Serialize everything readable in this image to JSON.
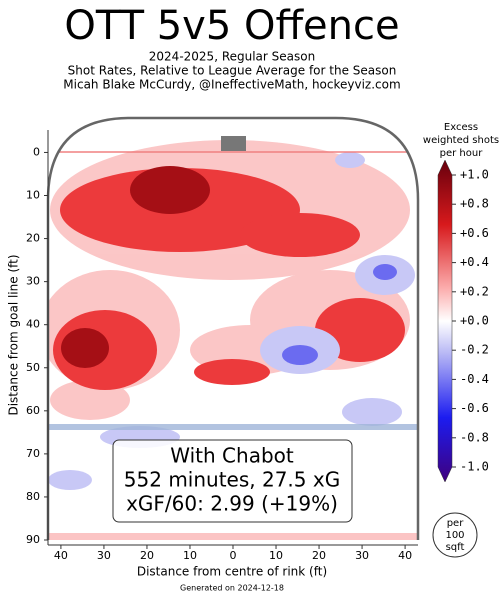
{
  "chart_data": {
    "type": "contour",
    "title": "OTT 5v5 Offence",
    "subtitle": [
      "2024-2025, Regular Season",
      "Shot Rates, Relative to League Average for the Season",
      "Micah Blake McCurdy, @IneffectiveMath, hockeyviz.com"
    ],
    "x_label": "Distance from centre of rink (ft)",
    "y_label": "Distance from goal line (ft)",
    "xlim": [
      43,
      -43
    ],
    "xticks": [
      40,
      30,
      20,
      10,
      0,
      {
        "value": -10,
        "label": "10"
      },
      {
        "value": -20,
        "label": "20"
      },
      {
        "value": -30,
        "label": "30"
      },
      {
        "value": -40,
        "label": "40"
      }
    ],
    "ylim": [
      -8,
      90
    ],
    "yticks": [
      0,
      10,
      20,
      30,
      40,
      50,
      60,
      70,
      80,
      90
    ],
    "colorbar_label": [
      "Excess",
      "weighted shots",
      "per hour"
    ],
    "colorbar_lim": [
      -1.0,
      1.0
    ],
    "colorbar_ticks": [
      {
        "value": 1.0,
        "label": "+1.0"
      },
      {
        "value": 0.8,
        "label": "+0.8"
      },
      {
        "value": 0.6,
        "label": "+0.6"
      },
      {
        "value": 0.4,
        "label": "+0.4"
      },
      {
        "value": 0.2,
        "label": "+0.2"
      },
      {
        "value": 0.0,
        "label": "+0.0"
      },
      {
        "value": -0.2,
        "label": "-0.2"
      },
      {
        "value": -0.4,
        "label": "-0.4"
      },
      {
        "value": -0.6,
        "label": "-0.6"
      },
      {
        "value": -0.8,
        "label": "-0.8"
      },
      {
        "value": -1.0,
        "label": "-1.0"
      }
    ],
    "unit_note": [
      "per",
      "100",
      "sqft"
    ],
    "annotation": [
      "With Chabot",
      "552 minutes, 27.5 xG",
      "xGF/60: 2.99 (+19%)"
    ],
    "footer": "Generated on 2024-12-18"
  }
}
